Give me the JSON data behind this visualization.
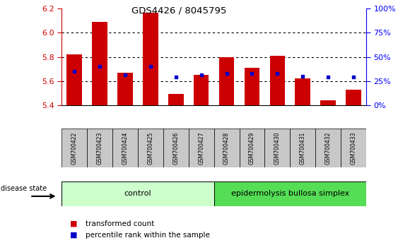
{
  "title": "GDS4426 / 8045795",
  "samples": [
    "GSM700422",
    "GSM700423",
    "GSM700424",
    "GSM700425",
    "GSM700426",
    "GSM700427",
    "GSM700428",
    "GSM700429",
    "GSM700430",
    "GSM700431",
    "GSM700432",
    "GSM700433"
  ],
  "transformed_count": [
    5.82,
    6.09,
    5.67,
    6.17,
    5.49,
    5.65,
    5.8,
    5.71,
    5.81,
    5.62,
    5.44,
    5.53
  ],
  "percentile_rank": [
    5.68,
    5.72,
    5.65,
    5.72,
    5.63,
    5.65,
    5.66,
    5.66,
    5.66,
    5.64,
    5.63,
    5.63
  ],
  "ylim": [
    5.4,
    6.2
  ],
  "yticks_left": [
    5.4,
    5.6,
    5.8,
    6.0,
    6.2
  ],
  "yticks_right_pct": [
    0,
    25,
    50,
    75,
    100
  ],
  "bar_color": "#cc0000",
  "dot_color": "#0000cc",
  "bar_width": 0.6,
  "control_samples": 6,
  "control_label": "control",
  "disease_label": "epidermolysis bullosa simplex",
  "group_label": "disease state",
  "legend_bar": "transformed count",
  "legend_dot": "percentile rank within the sample",
  "background_color": "#ffffff",
  "plot_bg": "#ffffff",
  "axis_color_left": "#cc0000",
  "axis_color_right": "#0000ff",
  "control_bg_light": "#ccffcc",
  "disease_bg_bright": "#55dd55",
  "sample_bg": "#c8c8c8",
  "ybaseline": 5.4
}
